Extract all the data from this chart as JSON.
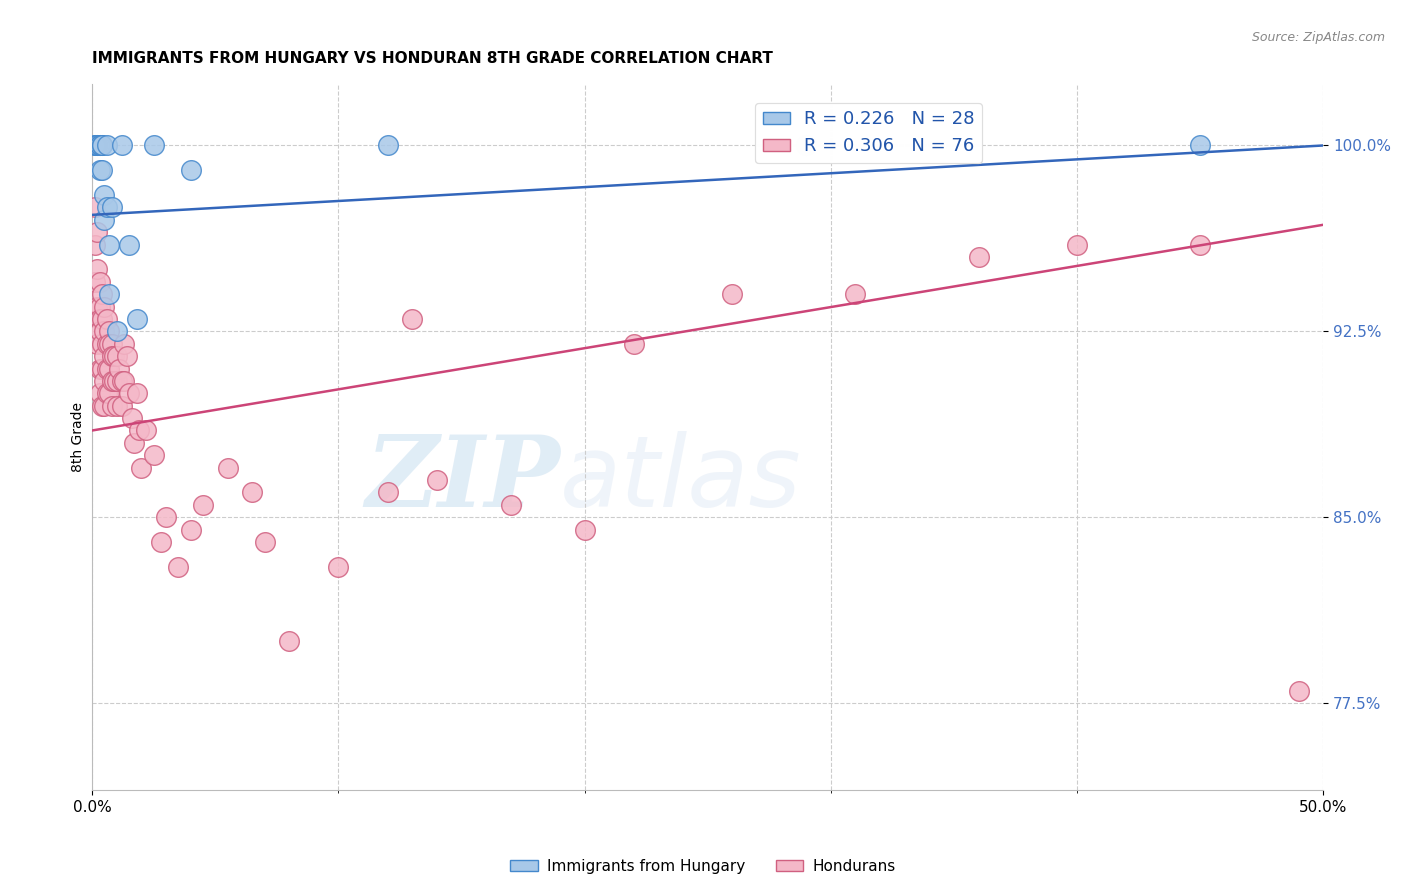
{
  "title": "IMMIGRANTS FROM HUNGARY VS HONDURAN 8TH GRADE CORRELATION CHART",
  "source": "Source: ZipAtlas.com",
  "ylabel": "8th Grade",
  "yticks": [
    0.775,
    0.85,
    0.925,
    1.0
  ],
  "ytick_labels": [
    "77.5%",
    "85.0%",
    "92.5%",
    "100.0%"
  ],
  "xlim": [
    0.0,
    0.5
  ],
  "ylim": [
    0.74,
    1.025
  ],
  "legend_blue_label": "R = 0.226   N = 28",
  "legend_pink_label": "R = 0.306   N = 76",
  "legend_series1": "Immigrants from Hungary",
  "legend_series2": "Hondurans",
  "blue_color": "#a8c8e8",
  "pink_color": "#f4b8c8",
  "blue_edge_color": "#4488cc",
  "pink_edge_color": "#d06080",
  "blue_line_color": "#3366bb",
  "pink_line_color": "#cc4477",
  "watermark_zip": "ZIP",
  "watermark_atlas": "atlas",
  "blue_trend_x0": 0.0,
  "blue_trend_y0": 0.972,
  "blue_trend_x1": 0.5,
  "blue_trend_y1": 1.0,
  "pink_trend_x0": 0.0,
  "pink_trend_y0": 0.885,
  "pink_trend_x1": 0.5,
  "pink_trend_y1": 0.968,
  "blue_points_x": [
    0.001,
    0.001,
    0.002,
    0.002,
    0.002,
    0.003,
    0.003,
    0.003,
    0.003,
    0.004,
    0.004,
    0.004,
    0.005,
    0.005,
    0.006,
    0.006,
    0.007,
    0.007,
    0.008,
    0.01,
    0.012,
    0.015,
    0.018,
    0.025,
    0.04,
    0.12,
    0.29,
    0.45
  ],
  "blue_points_y": [
    1.0,
    1.0,
    1.0,
    1.0,
    1.0,
    1.0,
    1.0,
    1.0,
    0.99,
    1.0,
    1.0,
    0.99,
    0.98,
    0.97,
    1.0,
    0.975,
    0.96,
    0.94,
    0.975,
    0.925,
    1.0,
    0.96,
    0.93,
    1.0,
    0.99,
    1.0,
    1.0,
    1.0
  ],
  "pink_points_x": [
    0.001,
    0.001,
    0.001,
    0.002,
    0.002,
    0.002,
    0.002,
    0.003,
    0.003,
    0.003,
    0.003,
    0.003,
    0.003,
    0.004,
    0.004,
    0.004,
    0.004,
    0.004,
    0.005,
    0.005,
    0.005,
    0.005,
    0.005,
    0.006,
    0.006,
    0.006,
    0.006,
    0.007,
    0.007,
    0.007,
    0.007,
    0.008,
    0.008,
    0.008,
    0.008,
    0.009,
    0.009,
    0.01,
    0.01,
    0.01,
    0.011,
    0.012,
    0.012,
    0.013,
    0.013,
    0.014,
    0.015,
    0.016,
    0.017,
    0.018,
    0.019,
    0.02,
    0.022,
    0.025,
    0.028,
    0.03,
    0.035,
    0.04,
    0.045,
    0.055,
    0.065,
    0.07,
    0.08,
    0.1,
    0.12,
    0.13,
    0.14,
    0.17,
    0.2,
    0.22,
    0.26,
    0.31,
    0.36,
    0.4,
    0.45,
    0.49
  ],
  "pink_points_y": [
    0.975,
    0.96,
    0.945,
    0.965,
    0.95,
    0.935,
    0.92,
    0.945,
    0.935,
    0.93,
    0.925,
    0.91,
    0.9,
    0.94,
    0.93,
    0.92,
    0.91,
    0.895,
    0.935,
    0.925,
    0.915,
    0.905,
    0.895,
    0.93,
    0.92,
    0.91,
    0.9,
    0.925,
    0.92,
    0.91,
    0.9,
    0.92,
    0.915,
    0.905,
    0.895,
    0.915,
    0.905,
    0.915,
    0.905,
    0.895,
    0.91,
    0.905,
    0.895,
    0.92,
    0.905,
    0.915,
    0.9,
    0.89,
    0.88,
    0.9,
    0.885,
    0.87,
    0.885,
    0.875,
    0.84,
    0.85,
    0.83,
    0.845,
    0.855,
    0.87,
    0.86,
    0.84,
    0.8,
    0.83,
    0.86,
    0.93,
    0.865,
    0.855,
    0.845,
    0.92,
    0.94,
    0.94,
    0.955,
    0.96,
    0.96,
    0.78
  ]
}
